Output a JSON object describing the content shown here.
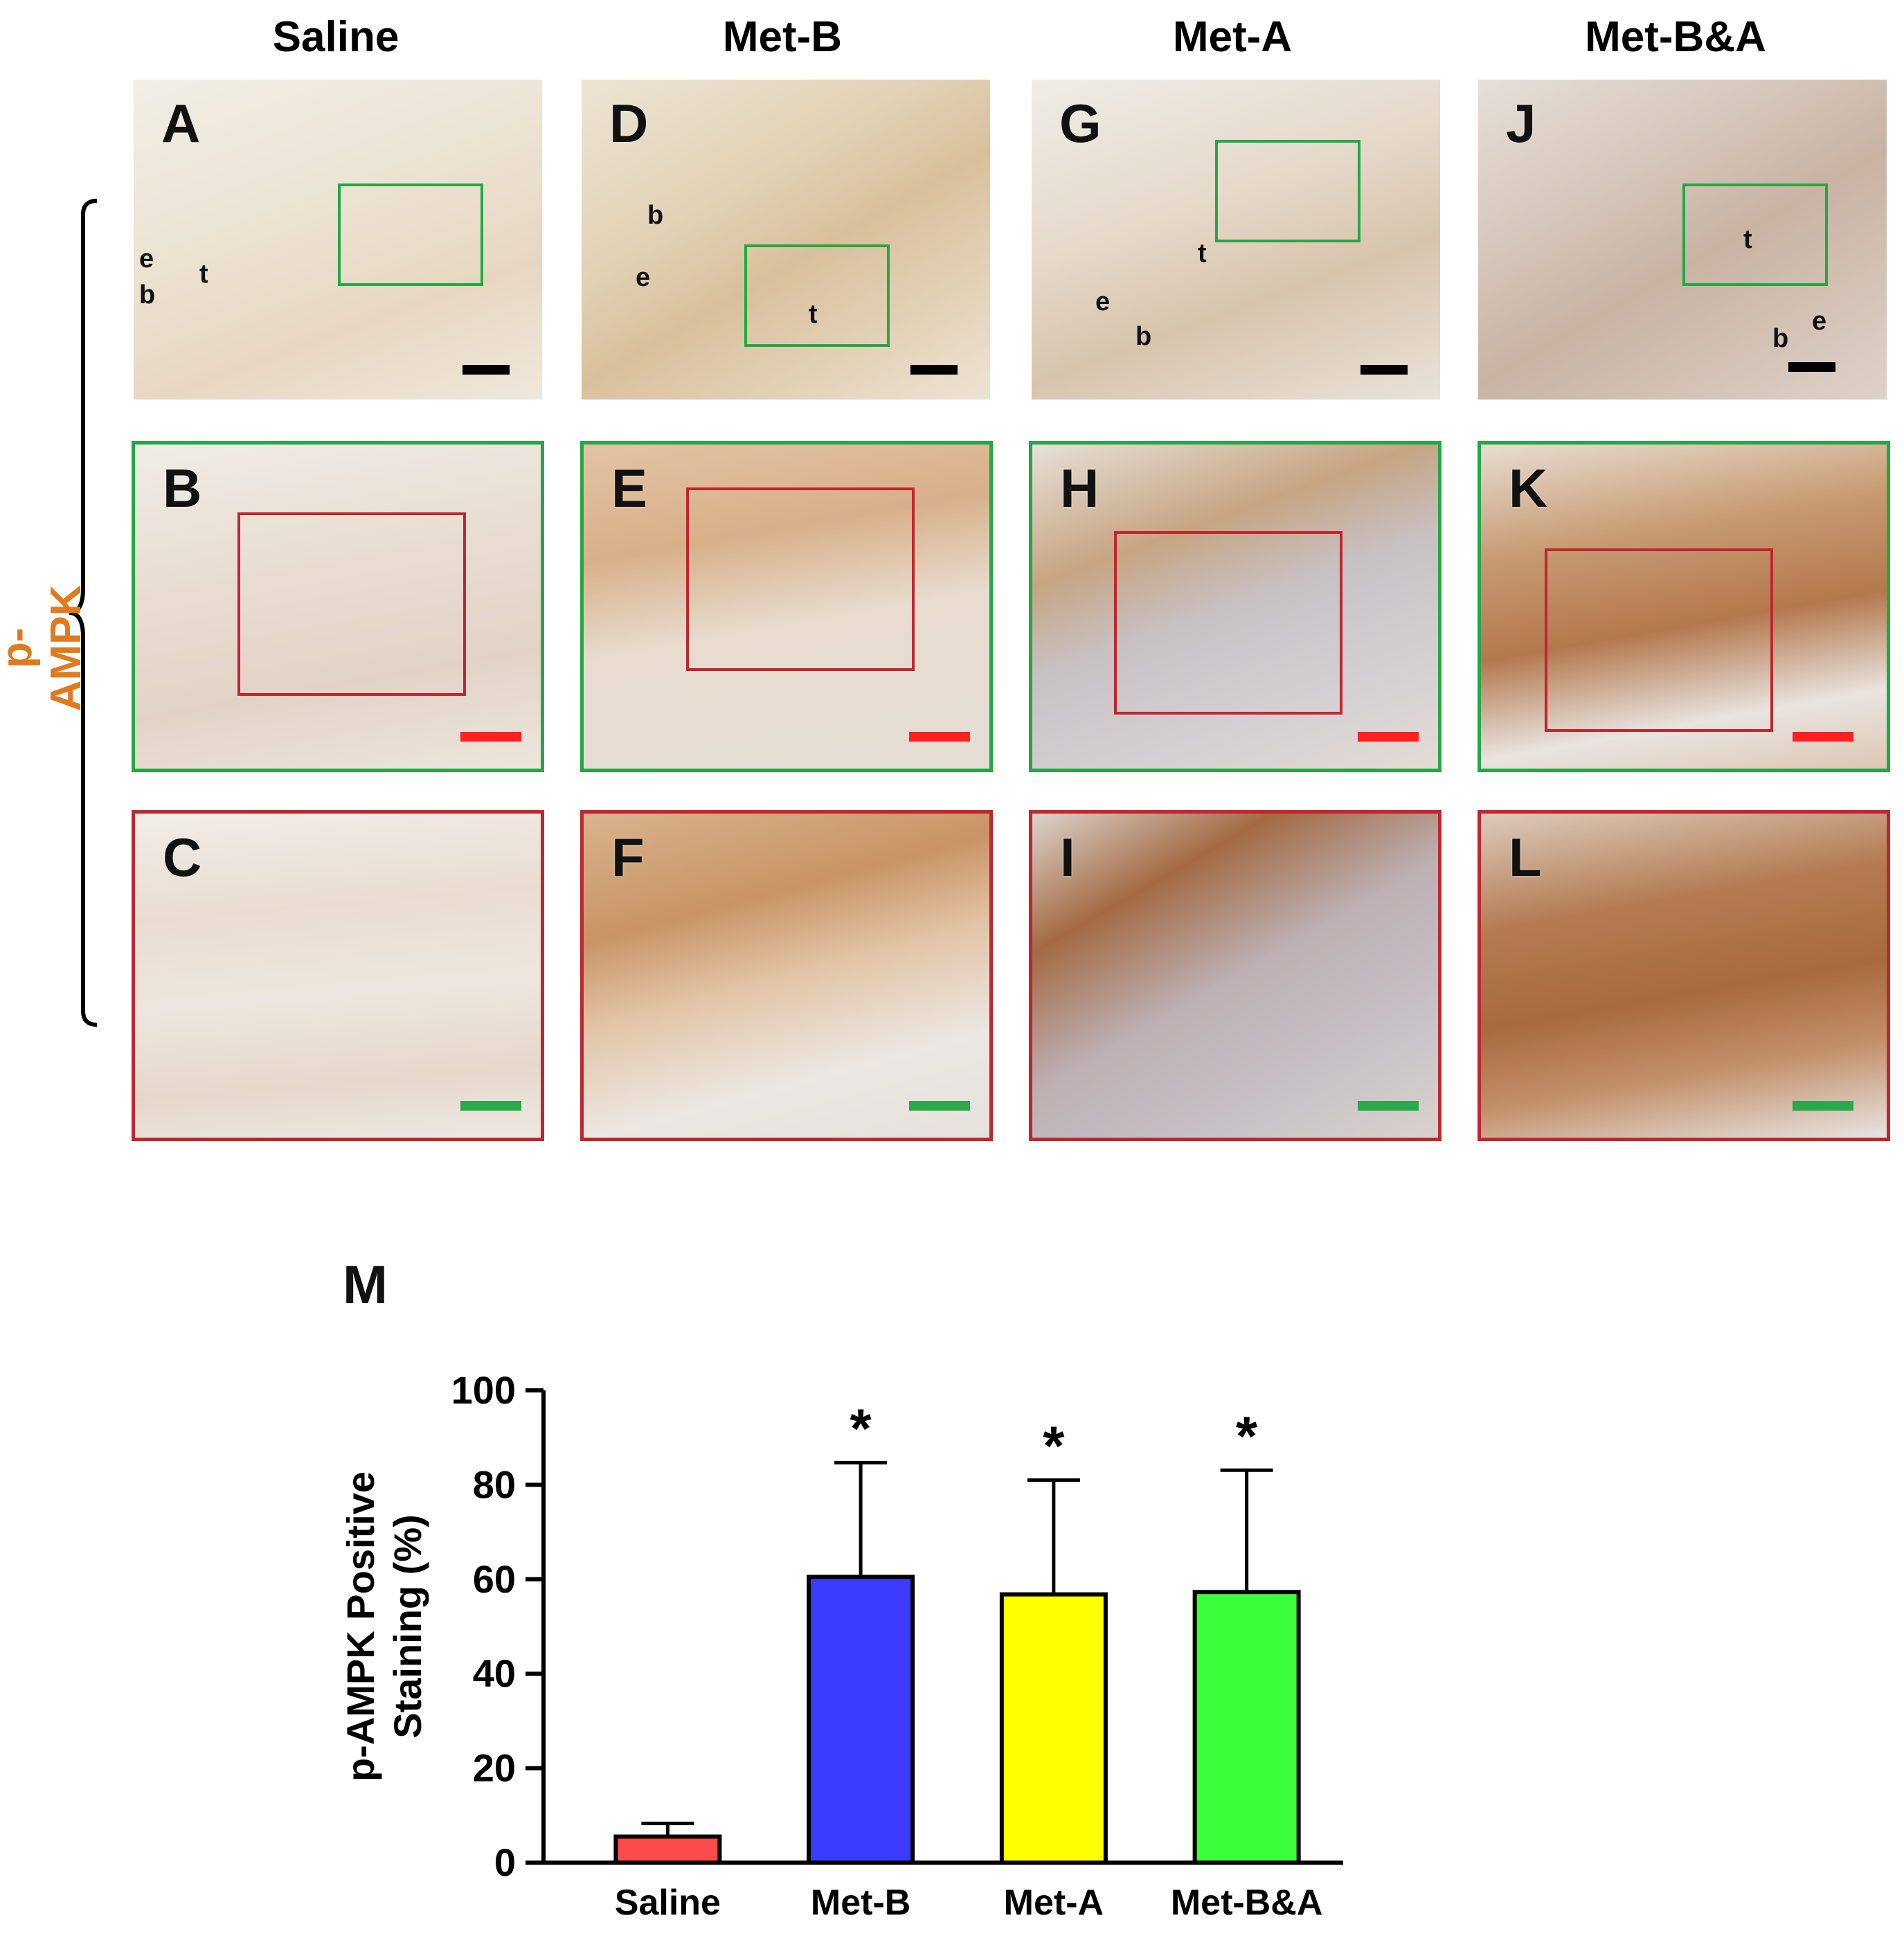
{
  "columns": [
    "Saline",
    "Met-B",
    "Met-A",
    "Met-B&A"
  ],
  "row_label": "p-AMPK",
  "panels": {
    "A": "A",
    "B": "B",
    "C": "C",
    "D": "D",
    "E": "E",
    "F": "F",
    "G": "G",
    "H": "H",
    "I": "I",
    "J": "J",
    "K": "K",
    "L": "L"
  },
  "tissue_labels": {
    "e": "e",
    "b": "b",
    "t": "t"
  },
  "panel_M": "M",
  "colors": {
    "green_box": "#22a845",
    "red_box": "#c0262d",
    "row_label": "#e07a1f"
  },
  "chart_data": {
    "type": "bar",
    "categories": [
      "Saline",
      "Met-B",
      "Met-A",
      "Met-B&A"
    ],
    "values": [
      5.5,
      60.5,
      56.8,
      57.3
    ],
    "errors": [
      2.8,
      24.2,
      24.2,
      25.8
    ],
    "significance": [
      "",
      "*",
      "*",
      "*"
    ],
    "colors": [
      "#ff4b4b",
      "#3c3cff",
      "#ffff00",
      "#3cff3c"
    ],
    "ylabel_lines": [
      "p-AMPK Positive",
      "Staining (%)"
    ],
    "yticks": [
      0,
      20,
      40,
      60,
      80,
      100
    ],
    "ylim": [
      0,
      100
    ]
  }
}
